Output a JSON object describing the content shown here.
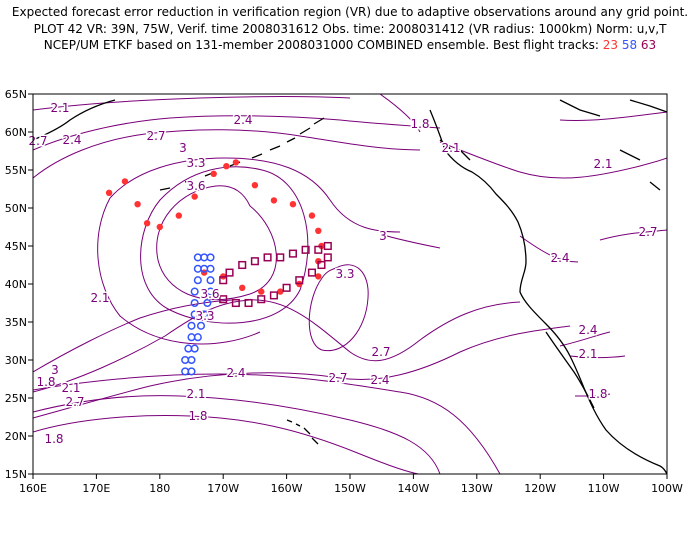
{
  "title": {
    "line1": "Expected forecast error reduction in verification region (VR) due to adaptive observations around any grid point.",
    "line2": "PLOT 42 VR: 39N, 75W, Verif. time 2008031612 Obs. time: 2008031412 (VR radius: 1000km) Norm: u,v,T",
    "line3_prefix": "NCEP/UM ETKF based on 131-member 2008031000 COMBINED ensemble.  Best flight tracks:",
    "track_a": "23",
    "track_b": "58",
    "track_c": "63"
  },
  "colors": {
    "contour": "#7a007a",
    "track_a": "#ff3333",
    "track_b": "#3355ff",
    "track_c": "#990055"
  },
  "axes": {
    "lon_labels": [
      "160E",
      "170E",
      "180",
      "170W",
      "160W",
      "150W",
      "140W",
      "130W",
      "120W",
      "110W",
      "100W"
    ],
    "lat_labels": [
      "15N",
      "20N",
      "25N",
      "30N",
      "35N",
      "40N",
      "45N",
      "50N",
      "55N",
      "60N",
      "65N"
    ]
  },
  "contour_labels": [
    "2.1",
    "2.4",
    "2.7",
    "3",
    "3.3",
    "3.6",
    "3.6",
    "3.3",
    "3",
    "2.7",
    "2.4",
    "2.1",
    "1.8",
    "1.8",
    "2.1",
    "2.4",
    "2.7",
    "1.8",
    "2.1",
    "2.7",
    "2.4",
    "3.3",
    "3",
    "2.7",
    "2.4",
    "2.1",
    "1.8",
    "2.1",
    "2.4",
    "1.8",
    "2.1",
    "3",
    "3.3",
    "2.7"
  ],
  "track_a_points": [
    [
      172,
      52
    ],
    [
      174.5,
      53.5
    ],
    [
      176.5,
      50.5
    ],
    [
      178,
      48
    ],
    [
      180,
      47.5
    ],
    [
      183,
      49
    ],
    [
      185.5,
      51.5
    ],
    [
      188.5,
      54.5
    ],
    [
      190.5,
      55.5
    ],
    [
      192,
      56
    ],
    [
      195,
      53
    ],
    [
      198,
      51
    ],
    [
      201,
      50.5
    ],
    [
      204,
      49
    ],
    [
      205,
      47
    ],
    [
      205.5,
      45
    ],
    [
      205,
      43
    ],
    [
      205,
      41
    ],
    [
      202,
      40
    ],
    [
      199,
      39
    ],
    [
      196,
      39
    ],
    [
      193,
      39.5
    ],
    [
      190,
      41
    ],
    [
      187,
      41.5
    ]
  ],
  "track_b_points": [
    [
      186,
      43.5
    ],
    [
      187,
      43.5
    ],
    [
      188,
      43.5
    ],
    [
      186,
      42
    ],
    [
      187,
      42
    ],
    [
      188,
      42
    ],
    [
      186,
      40.5
    ],
    [
      188,
      40.5
    ],
    [
      185.5,
      39
    ],
    [
      188,
      39
    ],
    [
      185.5,
      37.5
    ],
    [
      187.5,
      37.5
    ],
    [
      185.5,
      36
    ],
    [
      187,
      36
    ],
    [
      185,
      34.5
    ],
    [
      186.5,
      34.5
    ],
    [
      185,
      33
    ],
    [
      186,
      33
    ],
    [
      184.5,
      31.5
    ],
    [
      185.5,
      31.5
    ],
    [
      184,
      30
    ],
    [
      185,
      30
    ],
    [
      184,
      28.5
    ],
    [
      185,
      28.5
    ]
  ],
  "track_c_points": [
    [
      190,
      40.5
    ],
    [
      191,
      41.5
    ],
    [
      193,
      42.5
    ],
    [
      195,
      43
    ],
    [
      197,
      43.5
    ],
    [
      199,
      43.5
    ],
    [
      201,
      44
    ],
    [
      203,
      44.5
    ],
    [
      205,
      44.5
    ],
    [
      206.5,
      45
    ],
    [
      190,
      38
    ],
    [
      192,
      37.5
    ],
    [
      194,
      37.5
    ],
    [
      196,
      38
    ],
    [
      198,
      38.5
    ],
    [
      200,
      39.5
    ],
    [
      202,
      40.5
    ],
    [
      204,
      41.5
    ],
    [
      205.5,
      42.5
    ],
    [
      206.5,
      43.5
    ]
  ]
}
